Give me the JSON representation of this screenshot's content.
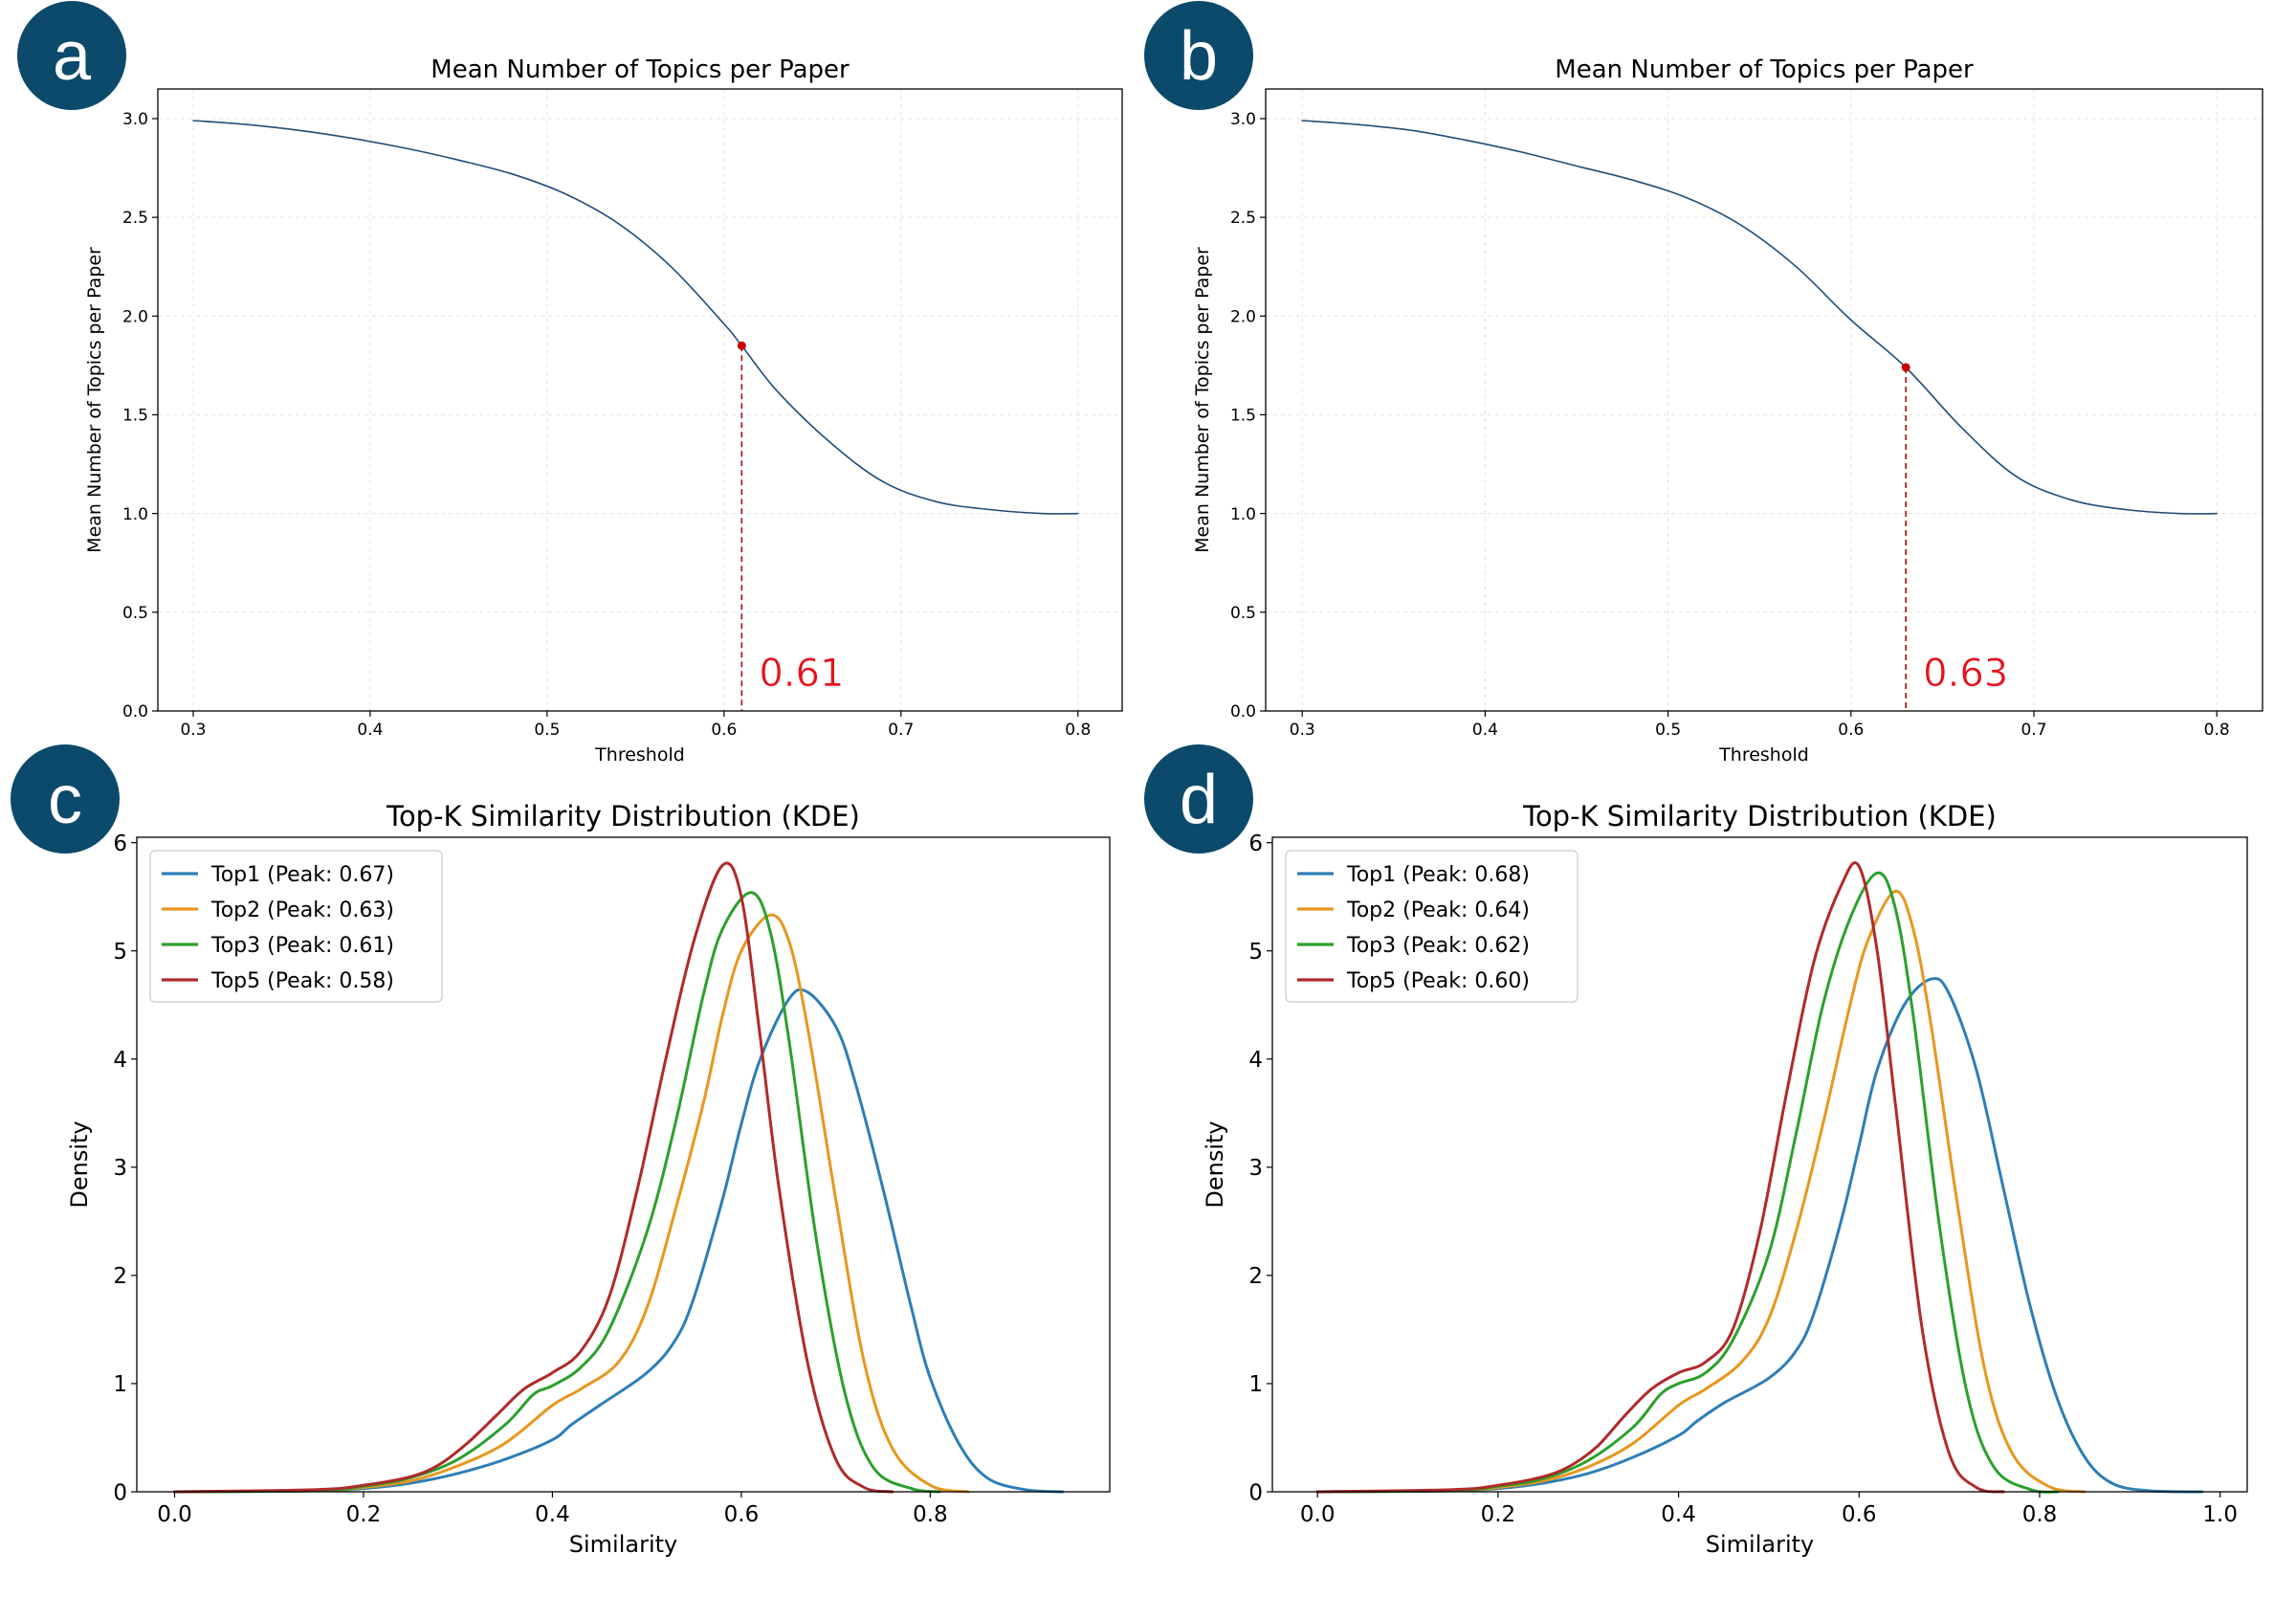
{
  "chart_data": [
    {
      "panel": "a",
      "type": "line",
      "title": "Mean Number of Topics per Paper",
      "xlabel": "Threshold",
      "ylabel": "Mean Number of Topics per Paper",
      "xlim": [
        0.28,
        0.825
      ],
      "ylim": [
        0.0,
        3.15
      ],
      "xticks": [
        "0.3",
        "0.4",
        "0.5",
        "0.6",
        "0.7",
        "0.8"
      ],
      "yticks": [
        "0.0",
        "0.5",
        "1.0",
        "1.5",
        "2.0",
        "2.5",
        "3.0"
      ],
      "grid": true,
      "line_color": "#1f4e79",
      "series": [
        {
          "x": [
            0.3,
            0.33,
            0.36,
            0.39,
            0.42,
            0.45,
            0.48,
            0.51,
            0.54,
            0.57,
            0.6,
            0.61,
            0.63,
            0.66,
            0.69,
            0.72,
            0.75,
            0.78,
            0.8
          ],
          "values": [
            2.99,
            2.97,
            2.94,
            2.9,
            2.85,
            2.79,
            2.72,
            2.62,
            2.47,
            2.25,
            1.96,
            1.85,
            1.62,
            1.36,
            1.16,
            1.06,
            1.02,
            1.0,
            1.0
          ]
        }
      ],
      "marker": {
        "x": 0.61,
        "y": 1.85,
        "color": "#cc0000"
      },
      "annotation": "0.61",
      "annotation_color": "#e8111b"
    },
    {
      "panel": "b",
      "type": "line",
      "title": "Mean Number of Topics per Paper",
      "xlabel": "Threshold",
      "ylabel": "Mean Number of Topics per Paper",
      "xlim": [
        0.28,
        0.825
      ],
      "ylim": [
        0.0,
        3.15
      ],
      "xticks": [
        "0.3",
        "0.4",
        "0.5",
        "0.6",
        "0.7",
        "0.8"
      ],
      "yticks": [
        "0.0",
        "0.5",
        "1.0",
        "1.5",
        "2.0",
        "2.5",
        "3.0"
      ],
      "grid": true,
      "line_color": "#1f4e79",
      "series": [
        {
          "x": [
            0.3,
            0.33,
            0.36,
            0.39,
            0.42,
            0.45,
            0.48,
            0.51,
            0.54,
            0.57,
            0.6,
            0.63,
            0.66,
            0.69,
            0.72,
            0.75,
            0.78,
            0.8
          ],
          "values": [
            2.99,
            2.97,
            2.94,
            2.89,
            2.83,
            2.76,
            2.69,
            2.6,
            2.46,
            2.25,
            1.98,
            1.74,
            1.44,
            1.19,
            1.07,
            1.02,
            1.0,
            1.0
          ]
        }
      ],
      "marker": {
        "x": 0.63,
        "y": 1.74,
        "color": "#cc0000"
      },
      "annotation": "0.63",
      "annotation_color": "#e8111b"
    },
    {
      "panel": "c",
      "type": "line",
      "title": "Top-K Similarity Distribution (KDE)",
      "xlabel": "Similarity",
      "ylabel": "Density",
      "xlim": [
        -0.04,
        0.99
      ],
      "ylim": [
        0,
        6.05
      ],
      "xticks": [
        "0.0",
        "0.2",
        "0.4",
        "0.6",
        "0.8"
      ],
      "yticks": [
        "0",
        "1",
        "2",
        "3",
        "4",
        "5",
        "6"
      ],
      "grid": false,
      "legend": "upper-left",
      "series": [
        {
          "name": "Top1 (Peak: 0.67)",
          "color": "#2e7eb6",
          "x": [
            0.0,
            0.15,
            0.2,
            0.25,
            0.3,
            0.35,
            0.4,
            0.42,
            0.45,
            0.5,
            0.53,
            0.55,
            0.58,
            0.6,
            0.62,
            0.65,
            0.67,
            0.7,
            0.72,
            0.75,
            0.78,
            0.8,
            0.83,
            0.86,
            0.9,
            0.94
          ],
          "values": [
            0.0,
            0.01,
            0.03,
            0.08,
            0.17,
            0.3,
            0.48,
            0.62,
            0.8,
            1.1,
            1.4,
            1.8,
            2.7,
            3.4,
            4.0,
            4.55,
            4.62,
            4.3,
            3.8,
            2.8,
            1.7,
            1.05,
            0.45,
            0.13,
            0.02,
            0.0
          ]
        },
        {
          "name": "Top2 (Peak: 0.63)",
          "color": "#e8961e",
          "x": [
            0.0,
            0.15,
            0.2,
            0.25,
            0.3,
            0.35,
            0.4,
            0.43,
            0.47,
            0.5,
            0.53,
            0.56,
            0.58,
            0.6,
            0.63,
            0.65,
            0.67,
            0.7,
            0.73,
            0.76,
            0.8,
            0.84
          ],
          "values": [
            0.0,
            0.01,
            0.04,
            0.1,
            0.24,
            0.45,
            0.8,
            0.95,
            1.2,
            1.7,
            2.6,
            3.6,
            4.4,
            5.0,
            5.33,
            5.1,
            4.3,
            2.7,
            1.2,
            0.4,
            0.06,
            0.0
          ]
        },
        {
          "name": "Top3 (Peak: 0.61)",
          "color": "#2ca02c",
          "x": [
            0.0,
            0.15,
            0.2,
            0.25,
            0.3,
            0.35,
            0.38,
            0.4,
            0.43,
            0.46,
            0.5,
            0.53,
            0.56,
            0.58,
            0.61,
            0.63,
            0.65,
            0.68,
            0.71,
            0.74,
            0.78,
            0.81
          ],
          "values": [
            0.0,
            0.01,
            0.05,
            0.13,
            0.3,
            0.62,
            0.9,
            0.98,
            1.15,
            1.5,
            2.4,
            3.4,
            4.6,
            5.2,
            5.54,
            5.2,
            4.2,
            2.3,
            0.9,
            0.22,
            0.03,
            0.0
          ]
        },
        {
          "name": "Top5 (Peak: 0.58)",
          "color": "#b02a2a",
          "x": [
            0.0,
            0.15,
            0.2,
            0.25,
            0.28,
            0.31,
            0.34,
            0.37,
            0.4,
            0.43,
            0.46,
            0.49,
            0.52,
            0.55,
            0.58,
            0.6,
            0.62,
            0.64,
            0.67,
            0.7,
            0.73,
            0.76
          ],
          "values": [
            0.0,
            0.02,
            0.06,
            0.14,
            0.25,
            0.45,
            0.7,
            0.95,
            1.1,
            1.3,
            1.8,
            2.8,
            4.0,
            5.1,
            5.79,
            5.5,
            4.2,
            2.8,
            1.2,
            0.3,
            0.04,
            0.0
          ]
        }
      ]
    },
    {
      "panel": "d",
      "type": "line",
      "title": "Top-K Similarity Distribution (KDE)",
      "xlabel": "Similarity",
      "ylabel": "Density",
      "xlim": [
        -0.05,
        1.03
      ],
      "ylim": [
        0,
        6.05
      ],
      "xticks": [
        "0.0",
        "0.2",
        "0.4",
        "0.6",
        "0.8",
        "1.0"
      ],
      "yticks": [
        "0",
        "1",
        "2",
        "3",
        "4",
        "5",
        "6"
      ],
      "grid": false,
      "legend": "upper-left",
      "series": [
        {
          "name": "Top1 (Peak: 0.68)",
          "color": "#2e7eb6",
          "x": [
            0.0,
            0.15,
            0.2,
            0.25,
            0.3,
            0.35,
            0.4,
            0.42,
            0.45,
            0.5,
            0.53,
            0.55,
            0.58,
            0.6,
            0.62,
            0.65,
            0.68,
            0.7,
            0.73,
            0.76,
            0.79,
            0.82,
            0.85,
            0.88,
            0.92,
            0.98
          ],
          "values": [
            0.0,
            0.01,
            0.03,
            0.08,
            0.17,
            0.32,
            0.52,
            0.65,
            0.82,
            1.05,
            1.3,
            1.65,
            2.5,
            3.2,
            3.9,
            4.5,
            4.74,
            4.6,
            3.9,
            2.8,
            1.7,
            0.85,
            0.32,
            0.08,
            0.01,
            0.0
          ]
        },
        {
          "name": "Top2 (Peak: 0.64)",
          "color": "#e8961e",
          "x": [
            0.0,
            0.15,
            0.2,
            0.25,
            0.3,
            0.35,
            0.4,
            0.43,
            0.47,
            0.5,
            0.53,
            0.56,
            0.59,
            0.61,
            0.64,
            0.66,
            0.68,
            0.71,
            0.74,
            0.77,
            0.81,
            0.85
          ],
          "values": [
            0.0,
            0.01,
            0.04,
            0.1,
            0.23,
            0.45,
            0.8,
            0.95,
            1.2,
            1.6,
            2.4,
            3.4,
            4.5,
            5.1,
            5.55,
            5.2,
            4.3,
            2.6,
            1.1,
            0.35,
            0.05,
            0.0
          ]
        },
        {
          "name": "Top3 (Peak: 0.62)",
          "color": "#2ca02c",
          "x": [
            0.0,
            0.15,
            0.2,
            0.25,
            0.3,
            0.35,
            0.38,
            0.4,
            0.43,
            0.46,
            0.5,
            0.53,
            0.56,
            0.59,
            0.62,
            0.64,
            0.66,
            0.69,
            0.72,
            0.75,
            0.79,
            0.82
          ],
          "values": [
            0.0,
            0.01,
            0.05,
            0.12,
            0.29,
            0.6,
            0.9,
            1.0,
            1.1,
            1.4,
            2.2,
            3.3,
            4.5,
            5.3,
            5.72,
            5.4,
            4.4,
            2.4,
            0.9,
            0.22,
            0.02,
            0.0
          ]
        },
        {
          "name": "Top5 (Peak: 0.60)",
          "color": "#b02a2a",
          "x": [
            0.0,
            0.15,
            0.2,
            0.25,
            0.28,
            0.31,
            0.34,
            0.37,
            0.4,
            0.43,
            0.46,
            0.49,
            0.52,
            0.55,
            0.58,
            0.6,
            0.62,
            0.64,
            0.67,
            0.7,
            0.73,
            0.76
          ],
          "values": [
            0.0,
            0.02,
            0.06,
            0.14,
            0.24,
            0.42,
            0.7,
            0.95,
            1.1,
            1.2,
            1.5,
            2.4,
            3.7,
            4.9,
            5.6,
            5.78,
            5.0,
            3.6,
            1.5,
            0.35,
            0.04,
            0.0
          ]
        }
      ]
    }
  ]
}
